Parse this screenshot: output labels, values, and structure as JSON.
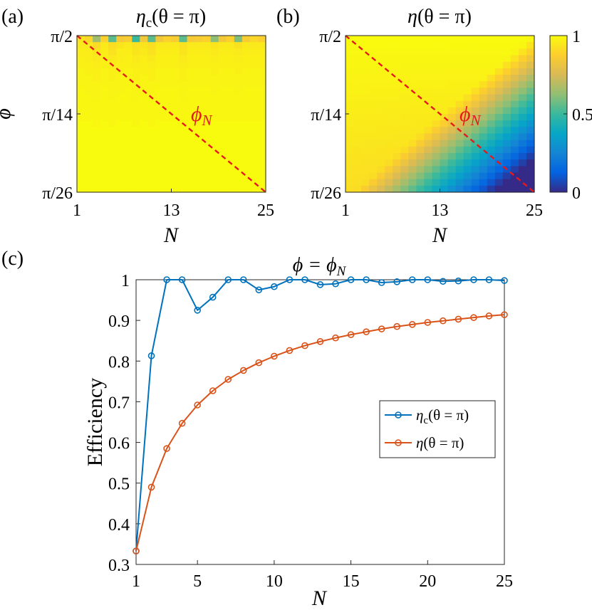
{
  "chart_data": [
    {
      "id": "a",
      "type": "heatmap",
      "panel_label": "(a)",
      "title_main": "η",
      "title_sub": "c",
      "title_arg": "(θ = π)",
      "xlabel": "N",
      "ylabel": "ϕ",
      "x_ticks": [
        "1",
        "13",
        "25"
      ],
      "x_tick_values": [
        1,
        13,
        25
      ],
      "y_ticks": [
        "π/2",
        "π/14",
        "π/26"
      ],
      "xlim": [
        1,
        25
      ],
      "ylim": [
        0,
        1
      ],
      "clim": [
        0,
        1
      ],
      "annotation": "ϕ",
      "annotation_sub": "N",
      "dashed_line": {
        "from": [
          1,
          1
        ],
        "to": [
          25,
          0
        ]
      },
      "grid_rows": 24,
      "grid_cols": 24,
      "values": [
        [
          0.93,
          0.9,
          0.65,
          0.88,
          0.55,
          0.85,
          0.86,
          0.5,
          0.84,
          0.55,
          0.84,
          0.88,
          0.86,
          0.55,
          0.85,
          0.86,
          0.88,
          0.62,
          0.84,
          0.88,
          0.6,
          0.86,
          0.9,
          0.88
        ],
        [
          0.95,
          0.95,
          0.91,
          0.95,
          0.92,
          0.94,
          0.95,
          0.93,
          0.94,
          0.92,
          0.95,
          0.95,
          0.95,
          0.93,
          0.95,
          0.95,
          0.95,
          0.94,
          0.95,
          0.95,
          0.93,
          0.95,
          0.95,
          0.95
        ],
        [
          0.96,
          0.96,
          0.94,
          0.96,
          0.93,
          0.96,
          0.96,
          0.94,
          0.95,
          0.93,
          0.96,
          0.96,
          0.96,
          0.94,
          0.96,
          0.96,
          0.96,
          0.95,
          0.96,
          0.96,
          0.95,
          0.96,
          0.96,
          0.96
        ],
        [
          0.97,
          0.96,
          0.95,
          0.97,
          0.95,
          0.96,
          0.97,
          0.95,
          0.96,
          0.95,
          0.97,
          0.97,
          0.97,
          0.95,
          0.97,
          0.97,
          0.97,
          0.96,
          0.97,
          0.97,
          0.96,
          0.97,
          0.97,
          0.97
        ],
        [
          0.97,
          0.97,
          0.96,
          0.97,
          0.96,
          0.97,
          0.97,
          0.96,
          0.97,
          0.96,
          0.97,
          0.97,
          0.97,
          0.96,
          0.97,
          0.97,
          0.97,
          0.97,
          0.97,
          0.97,
          0.97,
          0.97,
          0.97,
          0.97
        ],
        [
          0.98,
          0.97,
          0.97,
          0.98,
          0.97,
          0.97,
          0.98,
          0.97,
          0.97,
          0.97,
          0.98,
          0.98,
          0.98,
          0.97,
          0.98,
          0.98,
          0.98,
          0.97,
          0.98,
          0.98,
          0.97,
          0.98,
          0.98,
          0.98
        ],
        [
          0.98,
          0.98,
          0.97,
          0.98,
          0.97,
          0.98,
          0.98,
          0.97,
          0.98,
          0.97,
          0.98,
          0.98,
          0.98,
          0.97,
          0.98,
          0.98,
          0.98,
          0.98,
          0.98,
          0.98,
          0.98,
          0.98,
          0.98,
          0.98
        ],
        [
          0.98,
          0.98,
          0.98,
          0.98,
          0.98,
          0.98,
          0.98,
          0.98,
          0.98,
          0.98,
          0.98,
          0.98,
          0.98,
          0.98,
          0.98,
          0.98,
          0.98,
          0.98,
          0.98,
          0.98,
          0.98,
          0.98,
          0.98,
          0.98
        ],
        [
          0.99,
          0.98,
          0.98,
          0.99,
          0.98,
          0.98,
          0.99,
          0.98,
          0.98,
          0.98,
          0.99,
          0.99,
          0.99,
          0.98,
          0.99,
          0.99,
          0.99,
          0.98,
          0.99,
          0.99,
          0.98,
          0.99,
          0.99,
          0.99
        ],
        [
          0.99,
          0.99,
          0.98,
          0.99,
          0.98,
          0.99,
          0.99,
          0.98,
          0.99,
          0.98,
          0.99,
          0.99,
          0.99,
          0.98,
          0.99,
          0.99,
          0.99,
          0.99,
          0.99,
          0.99,
          0.99,
          0.99,
          0.99,
          0.99
        ],
        [
          0.99,
          0.99,
          0.99,
          0.99,
          0.99,
          0.99,
          0.99,
          0.99,
          0.99,
          0.99,
          0.99,
          0.99,
          0.99,
          0.99,
          0.99,
          0.99,
          0.99,
          0.99,
          0.99,
          0.99,
          0.99,
          0.99,
          0.99,
          0.99
        ],
        [
          0.99,
          0.99,
          0.99,
          0.99,
          0.99,
          0.99,
          0.99,
          0.99,
          0.99,
          0.99,
          0.99,
          0.99,
          0.99,
          0.99,
          0.99,
          0.99,
          0.99,
          0.99,
          0.99,
          0.99,
          0.99,
          0.99,
          0.99,
          0.99
        ],
        [
          0.99,
          0.99,
          0.99,
          0.99,
          0.99,
          0.99,
          0.99,
          0.99,
          0.99,
          0.99,
          0.99,
          0.99,
          0.99,
          0.99,
          0.99,
          0.99,
          0.99,
          0.99,
          0.99,
          0.99,
          0.99,
          0.99,
          0.99,
          0.99
        ],
        [
          1,
          1,
          0.99,
          1,
          0.99,
          1,
          1,
          0.99,
          1,
          0.99,
          1,
          1,
          1,
          0.99,
          1,
          1,
          1,
          1,
          1,
          1,
          1,
          1,
          1,
          1
        ],
        [
          1,
          1,
          1,
          1,
          1,
          1,
          1,
          1,
          1,
          1,
          1,
          1,
          1,
          1,
          1,
          1,
          1,
          1,
          1,
          1,
          1,
          1,
          1,
          1
        ],
        [
          1,
          1,
          1,
          1,
          1,
          1,
          1,
          1,
          1,
          1,
          1,
          1,
          1,
          1,
          1,
          1,
          1,
          1,
          1,
          1,
          1,
          1,
          1,
          1
        ],
        [
          1,
          1,
          1,
          1,
          1,
          1,
          1,
          1,
          1,
          1,
          1,
          1,
          1,
          1,
          1,
          1,
          1,
          1,
          1,
          1,
          1,
          1,
          1,
          1
        ],
        [
          1,
          1,
          1,
          1,
          1,
          1,
          1,
          1,
          1,
          1,
          1,
          1,
          1,
          1,
          1,
          1,
          1,
          1,
          1,
          1,
          1,
          1,
          1,
          1
        ],
        [
          1,
          1,
          1,
          1,
          1,
          1,
          1,
          1,
          1,
          1,
          1,
          1,
          1,
          1,
          1,
          1,
          1,
          1,
          1,
          1,
          1,
          1,
          1,
          1
        ],
        [
          1,
          1,
          1,
          1,
          1,
          1,
          1,
          1,
          1,
          1,
          1,
          1,
          1,
          1,
          1,
          1,
          1,
          1,
          1,
          1,
          1,
          1,
          1,
          1
        ],
        [
          1,
          1,
          1,
          1,
          1,
          1,
          1,
          1,
          1,
          1,
          1,
          1,
          1,
          1,
          1,
          1,
          1,
          1,
          1,
          1,
          1,
          1,
          1,
          1
        ],
        [
          1,
          1,
          1,
          1,
          1,
          1,
          1,
          1,
          1,
          1,
          1,
          1,
          1,
          1,
          1,
          1,
          1,
          1,
          1,
          1,
          1,
          1,
          1,
          1
        ],
        [
          1,
          1,
          1,
          1,
          1,
          1,
          1,
          1,
          1,
          1,
          1,
          1,
          1,
          1,
          1,
          1,
          1,
          1,
          1,
          1,
          1,
          1,
          1,
          1
        ],
        [
          1,
          1,
          1,
          1,
          1,
          1,
          1,
          1,
          1,
          1,
          1,
          1,
          1,
          1,
          1,
          1,
          1,
          1,
          1,
          1,
          1,
          1,
          1,
          1
        ]
      ]
    },
    {
      "id": "b",
      "type": "heatmap",
      "panel_label": "(b)",
      "title_main": "η",
      "title_sub": "",
      "title_arg": "(θ = π)",
      "xlabel": "N",
      "ylabel": "",
      "x_ticks": [
        "1",
        "13",
        "25"
      ],
      "x_tick_values": [
        1,
        13,
        25
      ],
      "y_ticks": [
        "π/2",
        "π/14",
        "π/26"
      ],
      "xlim": [
        1,
        25
      ],
      "ylim": [
        0,
        1
      ],
      "clim": [
        0,
        1
      ],
      "colorbar_ticks": [
        "0",
        "0.5",
        "1"
      ],
      "colorbar_tick_values": [
        0,
        0.5,
        1
      ],
      "annotation": "ϕ",
      "annotation_sub": "N",
      "dashed_line": {
        "from": [
          1,
          1
        ],
        "to": [
          25,
          0
        ]
      },
      "grid_rows": 24,
      "grid_cols": 24,
      "model": "eta = min(1, 0.92 + 0.08*(1-y)) - max(0, (x - 0.05) - 0.92*(1-y)) * 1.15 ; x=(N-1)/24, y=row fraction from top"
    },
    {
      "id": "c",
      "type": "line",
      "panel_label": "(c)",
      "title_lhs": "ϕ = ϕ",
      "title_sub": "N",
      "xlabel": "N",
      "ylabel": "Efficiency",
      "xlim": [
        1,
        25
      ],
      "ylim": [
        0.3,
        1
      ],
      "x_ticks": [
        "1",
        "5",
        "10",
        "15",
        "20",
        "25"
      ],
      "x_tick_values": [
        1,
        5,
        10,
        15,
        20,
        25
      ],
      "y_ticks": [
        "0.3",
        "0.4",
        "0.5",
        "0.6",
        "0.7",
        "0.8",
        "0.9",
        "1"
      ],
      "y_tick_values": [
        0.3,
        0.4,
        0.5,
        0.6,
        0.7,
        0.8,
        0.9,
        1
      ],
      "legend_position": "right",
      "series": [
        {
          "name": "η_c(θ = π)",
          "legend_main": "η",
          "legend_sub": "c",
          "legend_arg": "(θ = π)",
          "color": "#0072BD",
          "x": [
            1,
            2,
            3,
            4,
            5,
            6,
            7,
            8,
            9,
            10,
            11,
            12,
            13,
            14,
            15,
            16,
            17,
            18,
            19,
            20,
            21,
            22,
            23,
            24,
            25
          ],
          "values": [
            0.333,
            0.813,
            1.0,
            1.0,
            0.925,
            0.957,
            1.0,
            1.0,
            0.975,
            0.983,
            1.0,
            1.0,
            0.988,
            0.99,
            1.0,
            1.0,
            0.993,
            0.995,
            1.0,
            1.0,
            0.996,
            0.997,
            1.0,
            1.0,
            0.998
          ]
        },
        {
          "name": "η(θ = π)",
          "legend_main": "η",
          "legend_sub": "",
          "legend_arg": "(θ = π)",
          "color": "#D95319",
          "x": [
            1,
            2,
            3,
            4,
            5,
            6,
            7,
            8,
            9,
            10,
            11,
            12,
            13,
            14,
            15,
            16,
            17,
            18,
            19,
            20,
            21,
            22,
            23,
            24,
            25
          ],
          "values": [
            0.333,
            0.49,
            0.585,
            0.647,
            0.692,
            0.727,
            0.755,
            0.777,
            0.796,
            0.812,
            0.826,
            0.838,
            0.848,
            0.857,
            0.865,
            0.872,
            0.879,
            0.885,
            0.89,
            0.895,
            0.899,
            0.903,
            0.907,
            0.911,
            0.914
          ]
        }
      ]
    }
  ]
}
